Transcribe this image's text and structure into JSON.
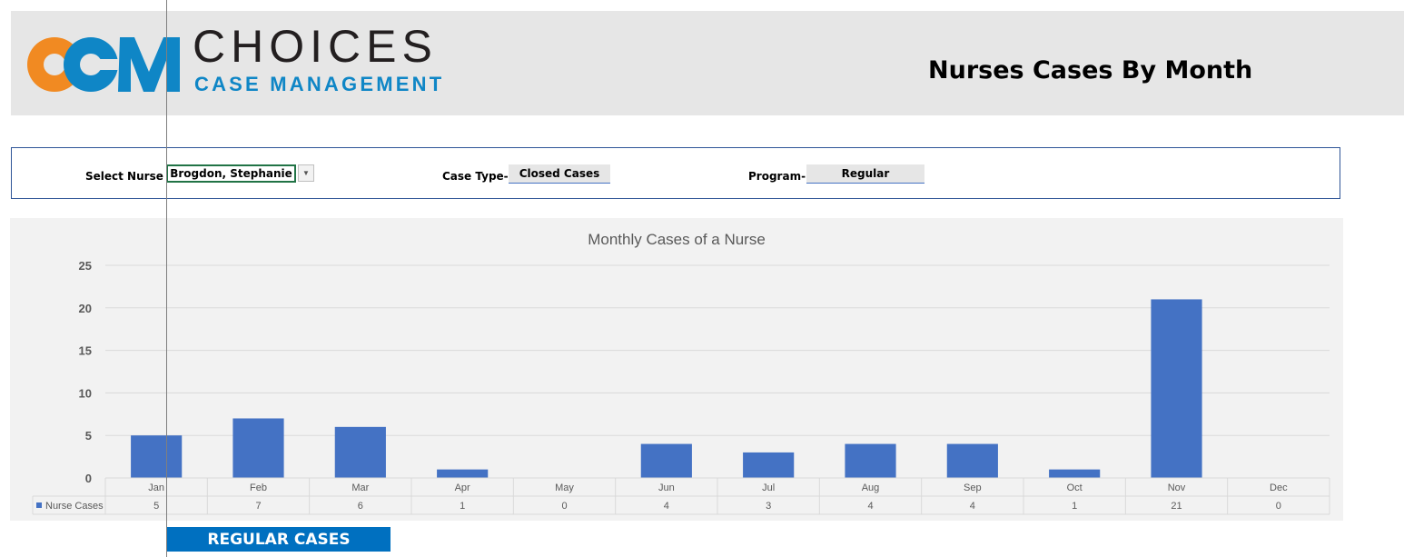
{
  "header": {
    "logo_mark": "CCM",
    "brand_name": "CHOICES",
    "brand_tagline": "CASE MANAGEMENT",
    "page_title": "Nurses Cases By Month",
    "colors": {
      "logo_orange": "#f18a22",
      "logo_blue": "#0f86c6"
    }
  },
  "filters": {
    "nurse_label": "Select Nurse ->",
    "nurse_value": "Brogdon, Stephanie",
    "case_type_label": "Case Type->",
    "case_type_value": "Closed Cases",
    "program_label": "Program->",
    "program_value": "Regular"
  },
  "chart_data": {
    "type": "bar",
    "title": "Monthly Cases of a Nurse",
    "categories": [
      "Jan",
      "Feb",
      "Mar",
      "Apr",
      "May",
      "Jun",
      "Jul",
      "Aug",
      "Sep",
      "Oct",
      "Nov",
      "Dec"
    ],
    "series": [
      {
        "name": "Nurse Cases",
        "values": [
          5,
          7,
          6,
          1,
          0,
          4,
          3,
          4,
          4,
          1,
          21,
          0
        ],
        "color": "#4472c4"
      }
    ],
    "ylim": [
      0,
      25
    ],
    "yticks": [
      0,
      5,
      10,
      15,
      20,
      25
    ],
    "grid": true,
    "data_table": true
  },
  "footer": {
    "regular_button": "REGULAR CASES",
    "button_color": "#0070c0"
  }
}
